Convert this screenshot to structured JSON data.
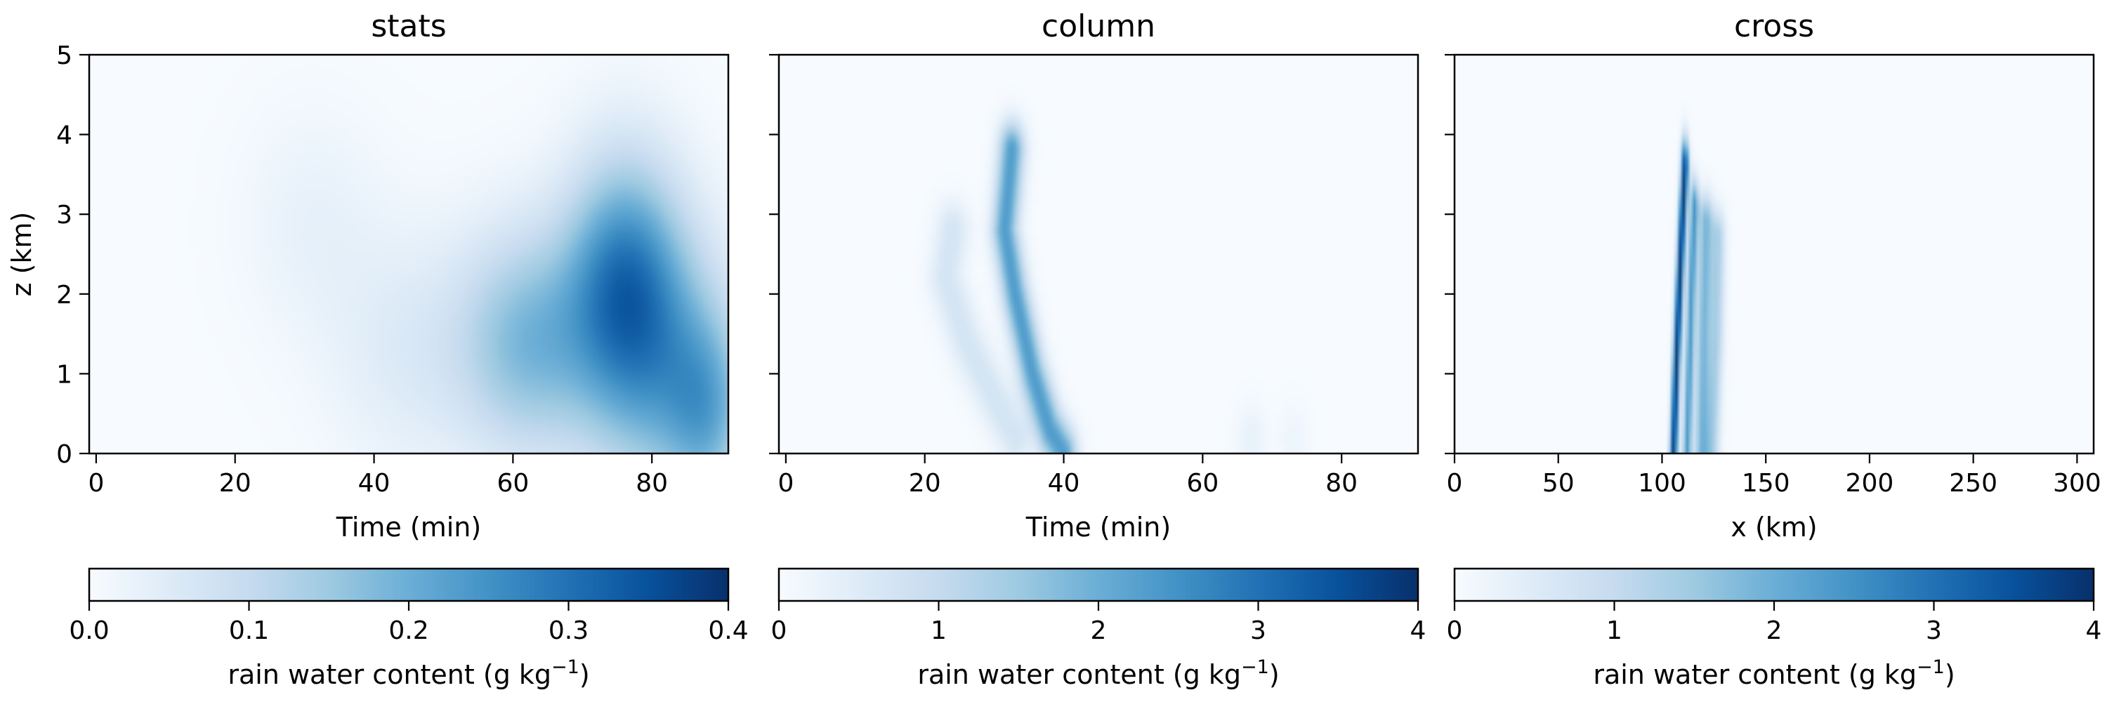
{
  "chart_data": [
    {
      "type": "heatmap",
      "title": "stats",
      "xlabel": "Time (min)",
      "ylabel": "z (km)",
      "xlim": [
        -1,
        91
      ],
      "ylim": [
        0,
        5
      ],
      "xticks": [
        0,
        20,
        40,
        60,
        80
      ],
      "yticks": [
        0,
        1,
        2,
        3,
        4,
        5
      ],
      "colormap": "Blues",
      "colorbar": {
        "label": "rain water content (g kg",
        "label_sup": "−1",
        "label_end": ")",
        "range": [
          0,
          0.4
        ],
        "ticks": [
          "0.0",
          "0.1",
          "0.2",
          "0.3",
          "0.4"
        ]
      },
      "features": [
        {
          "cx": 31,
          "cz": 2.9,
          "sx": 7,
          "sz": 1.0,
          "v": 0.03
        },
        {
          "cx": 45,
          "cz": 1.3,
          "sx": 8,
          "sz": 1.1,
          "v": 0.05
        },
        {
          "cx": 62,
          "cz": 1.4,
          "sx": 7,
          "sz": 1.0,
          "v": 0.17
        },
        {
          "cx": 76,
          "cz": 2.2,
          "sx": 6,
          "sz": 1.1,
          "v": 0.24
        },
        {
          "cx": 82,
          "cz": 1.0,
          "sx": 8,
          "sz": 1.2,
          "v": 0.16
        },
        {
          "cx": 88,
          "cz": 0.5,
          "sx": 4,
          "sz": 0.8,
          "v": 0.12
        }
      ]
    },
    {
      "type": "heatmap",
      "title": "column",
      "xlabel": "Time (min)",
      "ylabel": "",
      "xlim": [
        -1,
        91
      ],
      "ylim": [
        0,
        5
      ],
      "xticks": [
        0,
        20,
        40,
        60,
        80
      ],
      "yticks": [
        0,
        1,
        2,
        3,
        4,
        5
      ],
      "colormap": "Blues",
      "colorbar": {
        "label": "rain water content (g kg",
        "label_sup": "−1",
        "label_end": ")",
        "range": [
          0,
          4
        ],
        "ticks": [
          "0",
          "1",
          "2",
          "3",
          "4"
        ]
      },
      "features": [
        {
          "path": [
            [
              32.5,
              3.8
            ],
            [
              31.5,
              2.8
            ],
            [
              33,
              2.0
            ],
            [
              35.5,
              1.0
            ],
            [
              38,
              0.3
            ],
            [
              40,
              0.0
            ]
          ],
          "width": 1.3,
          "v": 2.3
        },
        {
          "path": [
            [
              24,
              2.8
            ],
            [
              23,
              2.2
            ],
            [
              26,
              1.4
            ],
            [
              30,
              0.7
            ],
            [
              33,
              0.2
            ]
          ],
          "width": 1.7,
          "v": 0.7
        },
        {
          "cx": 67,
          "cz": 0.2,
          "sx": 1.5,
          "sz": 0.3,
          "v": 0.3
        },
        {
          "cx": 73,
          "cz": 0.2,
          "sx": 1.5,
          "sz": 0.3,
          "v": 0.2
        }
      ]
    },
    {
      "type": "heatmap",
      "title": "cross",
      "xlabel": "x (km)",
      "ylabel": "",
      "xlim": [
        0,
        308
      ],
      "ylim": [
        0,
        5
      ],
      "xticks": [
        0,
        50,
        100,
        150,
        200,
        250,
        300
      ],
      "yticks": [
        0,
        1,
        2,
        3,
        4,
        5
      ],
      "colormap": "Blues",
      "colorbar": {
        "label": "rain water content (g kg",
        "label_sup": "−1",
        "label_end": ")",
        "range": [
          0,
          4
        ],
        "ticks": [
          "0",
          "1",
          "2",
          "3",
          "4"
        ]
      },
      "features": [
        {
          "path": [
            [
              111,
              3.6
            ],
            [
              109,
              2.5
            ],
            [
              107,
              1.2
            ],
            [
              105.5,
              0.0
            ]
          ],
          "width": 1.3,
          "v": 3.8
        },
        {
          "path": [
            [
              115.5,
              3.1
            ],
            [
              114,
              2.0
            ],
            [
              112,
              0.0
            ]
          ],
          "width": 1.5,
          "v": 2.3
        },
        {
          "path": [
            [
              121,
              2.9
            ],
            [
              120,
              1.6
            ],
            [
              119,
              0.0
            ]
          ],
          "width": 2.5,
          "v": 1.8
        },
        {
          "path": [
            [
              127,
              2.7
            ],
            [
              126,
              1.4
            ],
            [
              124,
              0.0
            ]
          ],
          "width": 2.5,
          "v": 1.3
        }
      ]
    }
  ]
}
